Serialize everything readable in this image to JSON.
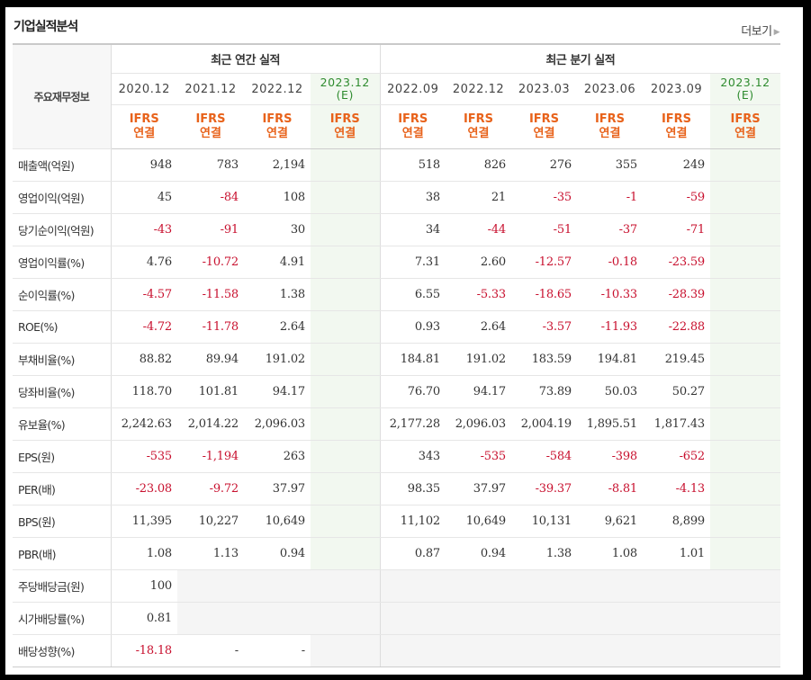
{
  "section_title": "기업실적분석",
  "more_label": "더보기",
  "corner_label": "주요재무정보",
  "groups": {
    "annual": "최근 연간 실적",
    "quarterly": "최근 분기 실적"
  },
  "annual_periods": [
    "2020.12",
    "2021.12",
    "2022.12",
    "2023.12"
  ],
  "annual_estimate_tag": "(E)",
  "quarter_periods": [
    "2022.09",
    "2022.12",
    "2023.03",
    "2023.06",
    "2023.09",
    "2023.12"
  ],
  "quarter_estimate_tag": "(E)",
  "basis": {
    "top": "IFRS",
    "bottom": "연결"
  },
  "rows": [
    {
      "label": "매출액(억원)",
      "annual": [
        "948",
        "783",
        "2,194",
        ""
      ],
      "quarterly": [
        "518",
        "826",
        "276",
        "355",
        "249",
        ""
      ]
    },
    {
      "label": "영업이익(억원)",
      "annual": [
        "45",
        "-84",
        "108",
        ""
      ],
      "quarterly": [
        "38",
        "21",
        "-35",
        "-1",
        "-59",
        ""
      ]
    },
    {
      "label": "당기순이익(억원)",
      "annual": [
        "-43",
        "-91",
        "30",
        ""
      ],
      "quarterly": [
        "34",
        "-44",
        "-51",
        "-37",
        "-71",
        ""
      ]
    },
    {
      "label": "영업이익률(%)",
      "annual": [
        "4.76",
        "-10.72",
        "4.91",
        ""
      ],
      "quarterly": [
        "7.31",
        "2.60",
        "-12.57",
        "-0.18",
        "-23.59",
        ""
      ]
    },
    {
      "label": "순이익률(%)",
      "annual": [
        "-4.57",
        "-11.58",
        "1.38",
        ""
      ],
      "quarterly": [
        "6.55",
        "-5.33",
        "-18.65",
        "-10.33",
        "-28.39",
        ""
      ]
    },
    {
      "label": "ROE(%)",
      "annual": [
        "-4.72",
        "-11.78",
        "2.64",
        ""
      ],
      "quarterly": [
        "0.93",
        "2.64",
        "-3.57",
        "-11.93",
        "-22.88",
        ""
      ]
    },
    {
      "label": "부채비율(%)",
      "annual": [
        "88.82",
        "89.94",
        "191.02",
        ""
      ],
      "quarterly": [
        "184.81",
        "191.02",
        "183.59",
        "194.81",
        "219.45",
        ""
      ]
    },
    {
      "label": "당좌비율(%)",
      "annual": [
        "118.70",
        "101.81",
        "94.17",
        ""
      ],
      "quarterly": [
        "76.70",
        "94.17",
        "73.89",
        "50.03",
        "50.27",
        ""
      ]
    },
    {
      "label": "유보율(%)",
      "annual": [
        "2,242.63",
        "2,014.22",
        "2,096.03",
        ""
      ],
      "quarterly": [
        "2,177.28",
        "2,096.03",
        "2,004.19",
        "1,895.51",
        "1,817.43",
        ""
      ]
    },
    {
      "label": "EPS(원)",
      "annual": [
        "-535",
        "-1,194",
        "263",
        ""
      ],
      "quarterly": [
        "343",
        "-535",
        "-584",
        "-398",
        "-652",
        ""
      ]
    },
    {
      "label": "PER(배)",
      "annual": [
        "-23.08",
        "-9.72",
        "37.97",
        ""
      ],
      "quarterly": [
        "98.35",
        "37.97",
        "-39.37",
        "-8.81",
        "-4.13",
        ""
      ]
    },
    {
      "label": "BPS(원)",
      "annual": [
        "11,395",
        "10,227",
        "10,649",
        ""
      ],
      "quarterly": [
        "11,102",
        "10,649",
        "10,131",
        "9,621",
        "8,899",
        ""
      ]
    },
    {
      "label": "PBR(배)",
      "annual": [
        "1.08",
        "1.13",
        "0.94",
        ""
      ],
      "quarterly": [
        "0.87",
        "0.94",
        "1.38",
        "1.08",
        "1.01",
        ""
      ]
    },
    {
      "label": "주당배당금(원)",
      "annual": [
        "100",
        "",
        "",
        ""
      ],
      "quarterly": [
        "",
        "",
        "",
        "",
        "",
        ""
      ]
    },
    {
      "label": "시가배당률(%)",
      "annual": [
        "0.81",
        "",
        "",
        ""
      ],
      "quarterly": [
        "",
        "",
        "",
        "",
        "",
        ""
      ]
    },
    {
      "label": "배당성향(%)",
      "annual": [
        "-18.18",
        "-",
        "-",
        ""
      ],
      "quarterly": [
        "",
        "",
        "",
        "",
        "",
        ""
      ]
    }
  ],
  "colors": {
    "negative": "#c8102e",
    "basis": "#e8621a",
    "estimate": "#2e8b2e",
    "estimate_bg": "#f2f8f0"
  }
}
